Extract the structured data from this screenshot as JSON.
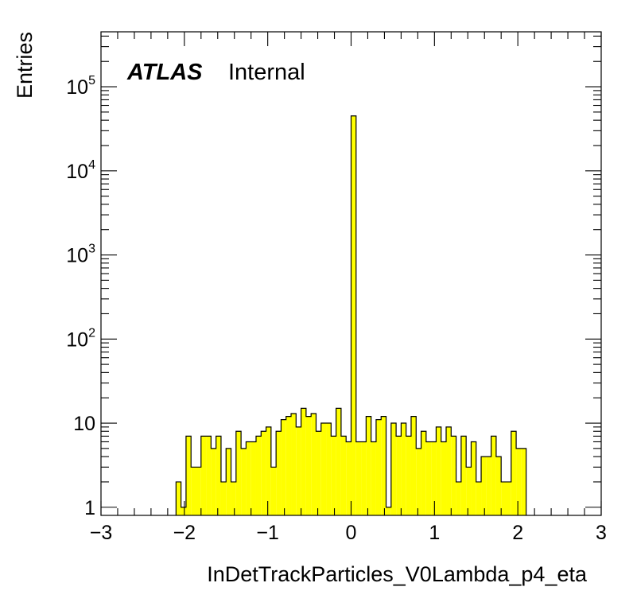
{
  "chart_data": {
    "type": "histogram",
    "title": "",
    "atlas_label": "ATLAS",
    "atlas_status": "Internal",
    "xlabel": "InDetTrackParticles_V0Lambda_p4_eta",
    "ylabel": "Entries",
    "xlim": [
      -3,
      3
    ],
    "ylim": [
      0.8,
      450000
    ],
    "yscale": "log",
    "bin_width": 0.06,
    "x_ticks": [
      "−3",
      "−2",
      "−1",
      "0",
      "1",
      "2",
      "3"
    ],
    "y_ticks": [
      {
        "value": 1,
        "base": "1",
        "exp": ""
      },
      {
        "value": 10,
        "base": "10",
        "exp": ""
      },
      {
        "value": 100,
        "base": "10",
        "exp": "2"
      },
      {
        "value": 1000,
        "base": "10",
        "exp": "3"
      },
      {
        "value": 10000,
        "base": "10",
        "exp": "4"
      },
      {
        "value": 100000,
        "base": "10",
        "exp": "5"
      }
    ],
    "fill_color": "#ffff00",
    "line_color": "#000000",
    "bins": [
      {
        "x": -2.1,
        "y": 2
      },
      {
        "x": -2.04,
        "y": 1
      },
      {
        "x": -1.98,
        "y": 7
      },
      {
        "x": -1.92,
        "y": 3
      },
      {
        "x": -1.86,
        "y": 3
      },
      {
        "x": -1.8,
        "y": 7
      },
      {
        "x": -1.74,
        "y": 7
      },
      {
        "x": -1.68,
        "y": 5
      },
      {
        "x": -1.62,
        "y": 7
      },
      {
        "x": -1.56,
        "y": 2
      },
      {
        "x": -1.5,
        "y": 5
      },
      {
        "x": -1.44,
        "y": 2
      },
      {
        "x": -1.38,
        "y": 8
      },
      {
        "x": -1.32,
        "y": 5
      },
      {
        "x": -1.26,
        "y": 6
      },
      {
        "x": -1.2,
        "y": 6
      },
      {
        "x": -1.14,
        "y": 7
      },
      {
        "x": -1.08,
        "y": 8
      },
      {
        "x": -1.02,
        "y": 9
      },
      {
        "x": -0.96,
        "y": 3
      },
      {
        "x": -0.9,
        "y": 8
      },
      {
        "x": -0.84,
        "y": 11
      },
      {
        "x": -0.78,
        "y": 12
      },
      {
        "x": -0.72,
        "y": 13
      },
      {
        "x": -0.66,
        "y": 9
      },
      {
        "x": -0.6,
        "y": 15
      },
      {
        "x": -0.54,
        "y": 12
      },
      {
        "x": -0.48,
        "y": 13
      },
      {
        "x": -0.42,
        "y": 8
      },
      {
        "x": -0.36,
        "y": 10
      },
      {
        "x": -0.3,
        "y": 10
      },
      {
        "x": -0.24,
        "y": 7
      },
      {
        "x": -0.18,
        "y": 15
      },
      {
        "x": -0.12,
        "y": 7
      },
      {
        "x": -0.06,
        "y": 6
      },
      {
        "x": 0.0,
        "y": 45000
      },
      {
        "x": 0.06,
        "y": 6
      },
      {
        "x": 0.12,
        "y": 6
      },
      {
        "x": 0.18,
        "y": 12
      },
      {
        "x": 0.24,
        "y": 6
      },
      {
        "x": 0.3,
        "y": 11
      },
      {
        "x": 0.36,
        "y": 12
      },
      {
        "x": 0.42,
        "y": 1
      },
      {
        "x": 0.48,
        "y": 10
      },
      {
        "x": 0.54,
        "y": 7
      },
      {
        "x": 0.6,
        "y": 10
      },
      {
        "x": 0.66,
        "y": 7
      },
      {
        "x": 0.72,
        "y": 12
      },
      {
        "x": 0.78,
        "y": 5
      },
      {
        "x": 0.84,
        "y": 8
      },
      {
        "x": 0.9,
        "y": 6
      },
      {
        "x": 0.96,
        "y": 6
      },
      {
        "x": 1.02,
        "y": 9
      },
      {
        "x": 1.08,
        "y": 6
      },
      {
        "x": 1.14,
        "y": 9
      },
      {
        "x": 1.2,
        "y": 7
      },
      {
        "x": 1.26,
        "y": 2
      },
      {
        "x": 1.32,
        "y": 7
      },
      {
        "x": 1.38,
        "y": 3
      },
      {
        "x": 1.44,
        "y": 6
      },
      {
        "x": 1.5,
        "y": 2
      },
      {
        "x": 1.56,
        "y": 4
      },
      {
        "x": 1.62,
        "y": 4
      },
      {
        "x": 1.68,
        "y": 7
      },
      {
        "x": 1.74,
        "y": 4
      },
      {
        "x": 1.8,
        "y": 2
      },
      {
        "x": 1.86,
        "y": 2
      },
      {
        "x": 1.92,
        "y": 8
      },
      {
        "x": 1.98,
        "y": 5
      },
      {
        "x": 2.04,
        "y": 5
      }
    ]
  }
}
